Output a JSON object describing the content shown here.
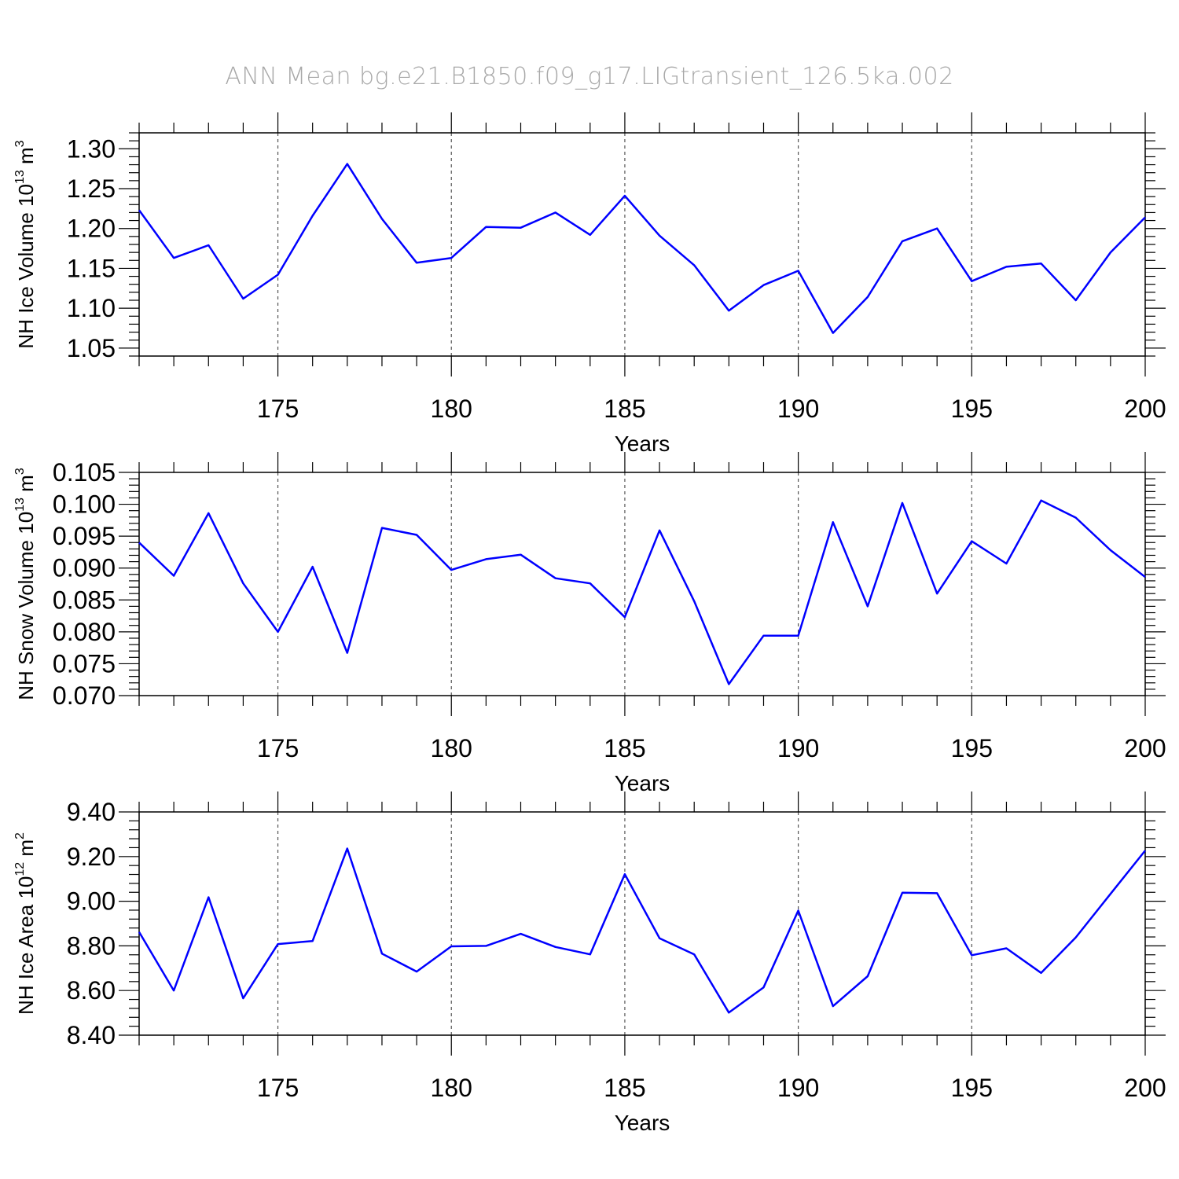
{
  "title": "ANN Mean bg.e21.B1850.f09_g17.LIGtransient_126.5ka.002",
  "chart_data": [
    {
      "type": "line",
      "ylabel_main": "NH Ice Volume 10",
      "ylabel_exp": "13",
      "ylabel_unit": " m",
      "ylabel_unit_exp": "3",
      "xlabel": "Years",
      "xlim": [
        171,
        200
      ],
      "ylim": [
        1.04,
        1.32
      ],
      "xticks": [
        175,
        180,
        185,
        190,
        195,
        200
      ],
      "yticks": [
        1.05,
        1.1,
        1.15,
        1.2,
        1.25,
        1.3
      ],
      "ytick_labels": [
        "1.05",
        "1.10",
        "1.15",
        "1.20",
        "1.25",
        "1.30"
      ],
      "x": [
        171,
        172,
        173,
        174,
        175,
        176,
        177,
        178,
        179,
        180,
        181,
        182,
        183,
        184,
        185,
        186,
        187,
        188,
        189,
        190,
        191,
        192,
        193,
        194,
        195,
        196,
        197,
        198,
        199,
        200
      ],
      "values": [
        1.223,
        1.163,
        1.179,
        1.112,
        1.142,
        1.216,
        1.281,
        1.212,
        1.157,
        1.163,
        1.202,
        1.201,
        1.22,
        1.192,
        1.241,
        1.191,
        1.154,
        1.097,
        1.129,
        1.147,
        1.069,
        1.114,
        1.184,
        1.2,
        1.134,
        1.152,
        1.156,
        1.11,
        1.17,
        1.214
      ],
      "grid": "vertical dashed at major x ticks"
    },
    {
      "type": "line",
      "ylabel_main": "NH Snow Volume 10",
      "ylabel_exp": "13",
      "ylabel_unit": " m",
      "ylabel_unit_exp": "3",
      "xlabel": "Years",
      "xlim": [
        171,
        200
      ],
      "ylim": [
        0.07,
        0.105
      ],
      "xticks": [
        175,
        180,
        185,
        190,
        195,
        200
      ],
      "yticks": [
        0.07,
        0.075,
        0.08,
        0.085,
        0.09,
        0.095,
        0.1,
        0.105
      ],
      "ytick_labels": [
        "0.070",
        "0.075",
        "0.080",
        "0.085",
        "0.090",
        "0.095",
        "0.100",
        "0.105"
      ],
      "x": [
        171,
        172,
        173,
        174,
        175,
        176,
        177,
        178,
        179,
        180,
        181,
        182,
        183,
        184,
        185,
        186,
        187,
        188,
        189,
        190,
        191,
        192,
        193,
        194,
        195,
        196,
        197,
        198,
        199,
        200
      ],
      "values": [
        0.094,
        0.0888,
        0.0986,
        0.0876,
        0.08,
        0.0902,
        0.0767,
        0.0963,
        0.0952,
        0.0897,
        0.0914,
        0.0921,
        0.0884,
        0.0876,
        0.0823,
        0.0959,
        0.0848,
        0.0718,
        0.0794,
        0.0794,
        0.0972,
        0.084,
        0.1002,
        0.086,
        0.0942,
        0.0907,
        0.1006,
        0.0979,
        0.0928,
        0.0886
      ],
      "grid": "vertical dashed at major x ticks"
    },
    {
      "type": "line",
      "ylabel_main": "NH Ice Area 10",
      "ylabel_exp": "12",
      "ylabel_unit": " m",
      "ylabel_unit_exp": "2",
      "xlabel": "Years",
      "xlim": [
        171,
        200
      ],
      "ylim": [
        8.4,
        9.4
      ],
      "xticks": [
        175,
        180,
        185,
        190,
        195,
        200
      ],
      "yticks": [
        8.4,
        8.6,
        8.8,
        9.0,
        9.2,
        9.4
      ],
      "ytick_labels": [
        "8.40",
        "8.60",
        "8.80",
        "9.00",
        "9.20",
        "9.40"
      ],
      "x": [
        171,
        172,
        173,
        174,
        175,
        176,
        177,
        178,
        179,
        180,
        181,
        182,
        183,
        184,
        185,
        186,
        187,
        188,
        189,
        190,
        191,
        192,
        193,
        194,
        195,
        196,
        197,
        198,
        199,
        200
      ],
      "values": [
        8.862,
        8.6,
        9.018,
        8.565,
        8.808,
        8.822,
        9.236,
        8.765,
        8.685,
        8.798,
        8.8,
        8.854,
        8.795,
        8.762,
        9.121,
        8.834,
        8.762,
        8.501,
        8.614,
        8.958,
        8.53,
        8.664,
        9.038,
        9.036,
        8.758,
        8.789,
        8.679,
        8.838,
        9.033,
        9.227
      ],
      "grid": "vertical dashed at major x ticks"
    }
  ]
}
